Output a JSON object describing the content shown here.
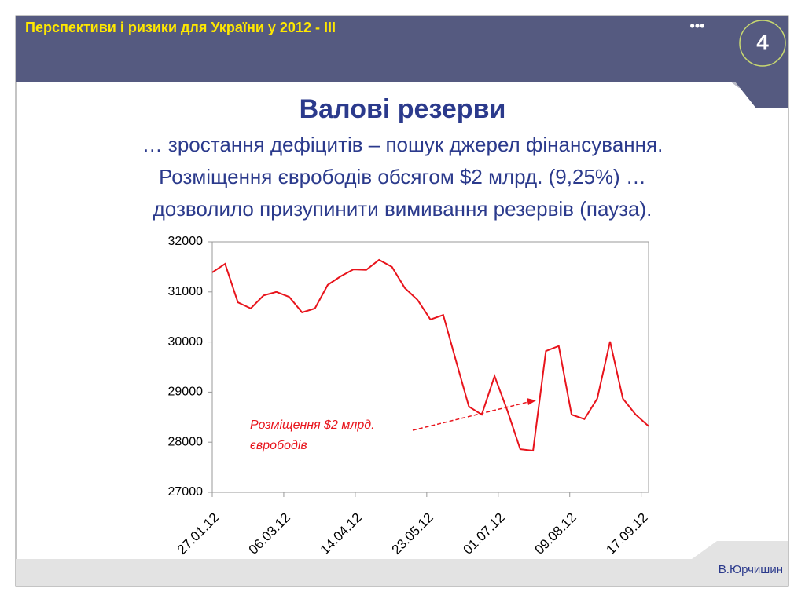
{
  "slide": {
    "header": "Перспективи і ризики для України у 2012 - ІІІ",
    "dots": "•••",
    "number": "4",
    "heading": "Валові резерви",
    "subtitle": [
      "… зростання дефіцитів – пошук джерел фінансування.",
      "Розміщення єврободів обсягом $2 млрд. (9,25%) …",
      "дозволило призупинити вимивання резервів (пауза)."
    ],
    "author": "В.Юрчишин"
  },
  "chart_data": {
    "type": "line",
    "x": [
      "2012-01-27",
      "2012-02-03",
      "2012-02-10",
      "2012-02-17",
      "2012-02-24",
      "2012-03-02",
      "2012-03-09",
      "2012-03-16",
      "2012-03-23",
      "2012-03-30",
      "2012-04-06",
      "2012-04-13",
      "2012-04-20",
      "2012-04-27",
      "2012-05-04",
      "2012-05-11",
      "2012-05-18",
      "2012-05-25",
      "2012-06-01",
      "2012-06-08",
      "2012-06-15",
      "2012-06-22",
      "2012-06-29",
      "2012-07-06",
      "2012-07-13",
      "2012-07-20",
      "2012-07-27",
      "2012-08-03",
      "2012-08-10",
      "2012-08-17",
      "2012-08-24",
      "2012-08-31",
      "2012-09-07",
      "2012-09-14",
      "2012-09-21"
    ],
    "series": [
      {
        "color": "#e8141c",
        "values": [
          31390,
          31560,
          30790,
          30670,
          30930,
          31000,
          30900,
          30590,
          30670,
          31140,
          31310,
          31450,
          31440,
          31640,
          31500,
          31080,
          30840,
          30450,
          30540,
          29620,
          28710,
          28550,
          29320,
          28630,
          27860,
          27830,
          29820,
          29920,
          28550,
          28460,
          28870,
          30010,
          28870,
          28550,
          28320
        ]
      }
    ],
    "xlim": [
      "2012-01-27",
      "2012-09-21"
    ],
    "xticks": [
      {
        "value": "2012-01-27",
        "label": "27.01.12"
      },
      {
        "value": "2012-03-06",
        "label": "06.03.12"
      },
      {
        "value": "2012-04-14",
        "label": "14.04.12"
      },
      {
        "value": "2012-05-23",
        "label": "23.05.12"
      },
      {
        "value": "2012-07-01",
        "label": "01.07.12"
      },
      {
        "value": "2012-08-09",
        "label": "09.08.12"
      },
      {
        "value": "2012-09-17",
        "label": "17.09.12"
      }
    ],
    "ylim": [
      27000,
      32000
    ],
    "yticks": [
      27000,
      28000,
      29000,
      30000,
      31000,
      32000
    ],
    "grid": false,
    "annotation": [
      "Розміщення $2 млрд.",
      "єврободів"
    ]
  }
}
